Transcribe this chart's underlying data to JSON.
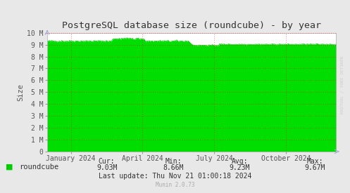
{
  "title": "PostgreSQL database size (roundcube) - by year",
  "ylabel": "Size",
  "background_color": "#e8e8e8",
  "plot_bg_color": "#ffffff",
  "grid_color": "#ff0000",
  "line_color": "#00cc00",
  "fill_color": "#00dd00",
  "ylim": [
    0,
    10000000
  ],
  "yticks": [
    0,
    1000000,
    2000000,
    3000000,
    4000000,
    5000000,
    6000000,
    7000000,
    8000000,
    9000000,
    10000000
  ],
  "ytick_labels": [
    "0",
    "1 M",
    "2 M",
    "3 M",
    "4 M",
    "5 M",
    "6 M",
    "7 M",
    "8 M",
    "9 M",
    "10 M"
  ],
  "xtick_labels": [
    "January 2024",
    "April 2024",
    "July 2024",
    "October 2024"
  ],
  "legend_label": "roundcube",
  "cur": "9.03M",
  "min": "8.66M",
  "avg": "9.23M",
  "max": "9.67M",
  "last_update": "Last update: Thu Nov 21 01:00:18 2024",
  "munin_version": "Munin 2.0.73",
  "watermark": "RRDTOOL / TOBI OETIKER",
  "title_fontsize": 9.5,
  "axis_fontsize": 7,
  "legend_fontsize": 7.5,
  "stats_fontsize": 7
}
